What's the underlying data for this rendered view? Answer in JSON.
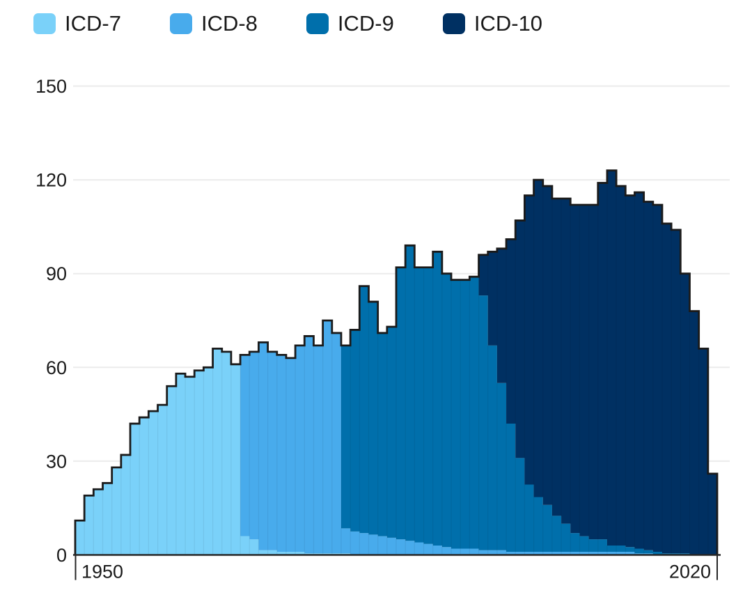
{
  "legend": {
    "items": [
      {
        "label": "ICD-7",
        "color": "#7ad1f9"
      },
      {
        "label": "ICD-8",
        "color": "#48abec"
      },
      {
        "label": "ICD-9",
        "color": "#006fab"
      },
      {
        "label": "ICD-10",
        "color": "#003062"
      }
    ]
  },
  "chart_data": {
    "type": "area",
    "variant": "stacked-step-area",
    "title": "",
    "xlabel": "",
    "ylabel": "",
    "x_start_year": 1950,
    "x_end_year": 2020,
    "ylim": [
      0,
      150
    ],
    "y_ticks": [
      0,
      30,
      60,
      90,
      120,
      150
    ],
    "x_tick_labels": [
      "1950",
      "2020"
    ],
    "grid": "horizontal",
    "legend_position": "top-left",
    "background": "#ffffff",
    "outline_color": "#1a1a1a",
    "axis_color": "#262626",
    "gridline_color": "#ebebeb",
    "text_color": "#1a1a1a",
    "series": [
      {
        "name": "ICD-7",
        "color": "#7ad1f9",
        "values": [
          11,
          19,
          21,
          23,
          28,
          32,
          42,
          44,
          46,
          48,
          54,
          58,
          57,
          59,
          60,
          66,
          65,
          61,
          6,
          5,
          1.5,
          1.5,
          1,
          1,
          1,
          0.5,
          0.5,
          0.5,
          0.5,
          0.5,
          0,
          0,
          0,
          0,
          0,
          0,
          0,
          0,
          0,
          0,
          0,
          0,
          0,
          0,
          0,
          0,
          0,
          0,
          0,
          0,
          0,
          0,
          0,
          0,
          0,
          0,
          0,
          0,
          0,
          0,
          0,
          0,
          0,
          0,
          0,
          0,
          0,
          0,
          0,
          0
        ]
      },
      {
        "name": "ICD-8",
        "color": "#48abec",
        "values": [
          0,
          0,
          0,
          0,
          0,
          0,
          0,
          0,
          0,
          0,
          0,
          0,
          0,
          0,
          0,
          0,
          0,
          0,
          58,
          60,
          66.5,
          63.5,
          63,
          62,
          66,
          69.5,
          66.5,
          74.5,
          70.5,
          8,
          7.5,
          7,
          6.5,
          6,
          5.5,
          5,
          4.5,
          4,
          3.5,
          3,
          2.5,
          2,
          2,
          2,
          1.5,
          1.5,
          1.5,
          1,
          1,
          1,
          1,
          1,
          1,
          1,
          1,
          1,
          1,
          1,
          1,
          1,
          1,
          0.5,
          0.5,
          0,
          0,
          0,
          0,
          0,
          0,
          0
        ]
      },
      {
        "name": "ICD-9",
        "color": "#006fab",
        "values": [
          0,
          0,
          0,
          0,
          0,
          0,
          0,
          0,
          0,
          0,
          0,
          0,
          0,
          0,
          0,
          0,
          0,
          0,
          0,
          0,
          0,
          0,
          0,
          0,
          0,
          0,
          0,
          0,
          0,
          58.5,
          64.5,
          79,
          74.5,
          65,
          67.5,
          87,
          94.5,
          88,
          88.5,
          94,
          87.5,
          86,
          86,
          87,
          81.5,
          65.5,
          53.5,
          41,
          30,
          21.5,
          17.5,
          15,
          11.5,
          9,
          6,
          5,
          4,
          4,
          2,
          2,
          1.5,
          1.5,
          1,
          1,
          0.5,
          0.5,
          0.5,
          0,
          0,
          0
        ]
      },
      {
        "name": "ICD-10",
        "color": "#003062",
        "values": [
          0,
          0,
          0,
          0,
          0,
          0,
          0,
          0,
          0,
          0,
          0,
          0,
          0,
          0,
          0,
          0,
          0,
          0,
          0,
          0,
          0,
          0,
          0,
          0,
          0,
          0,
          0,
          0,
          0,
          0,
          0,
          0,
          0,
          0,
          0,
          0,
          0,
          0,
          0,
          0,
          0,
          0,
          0,
          0,
          13,
          30,
          43,
          59,
          76,
          92.5,
          101.5,
          102,
          101.5,
          104,
          105,
          106,
          107,
          114,
          120,
          115,
          112.5,
          114,
          111.5,
          111,
          105.5,
          103.5,
          89.5,
          78,
          66,
          26
        ]
      }
    ]
  }
}
